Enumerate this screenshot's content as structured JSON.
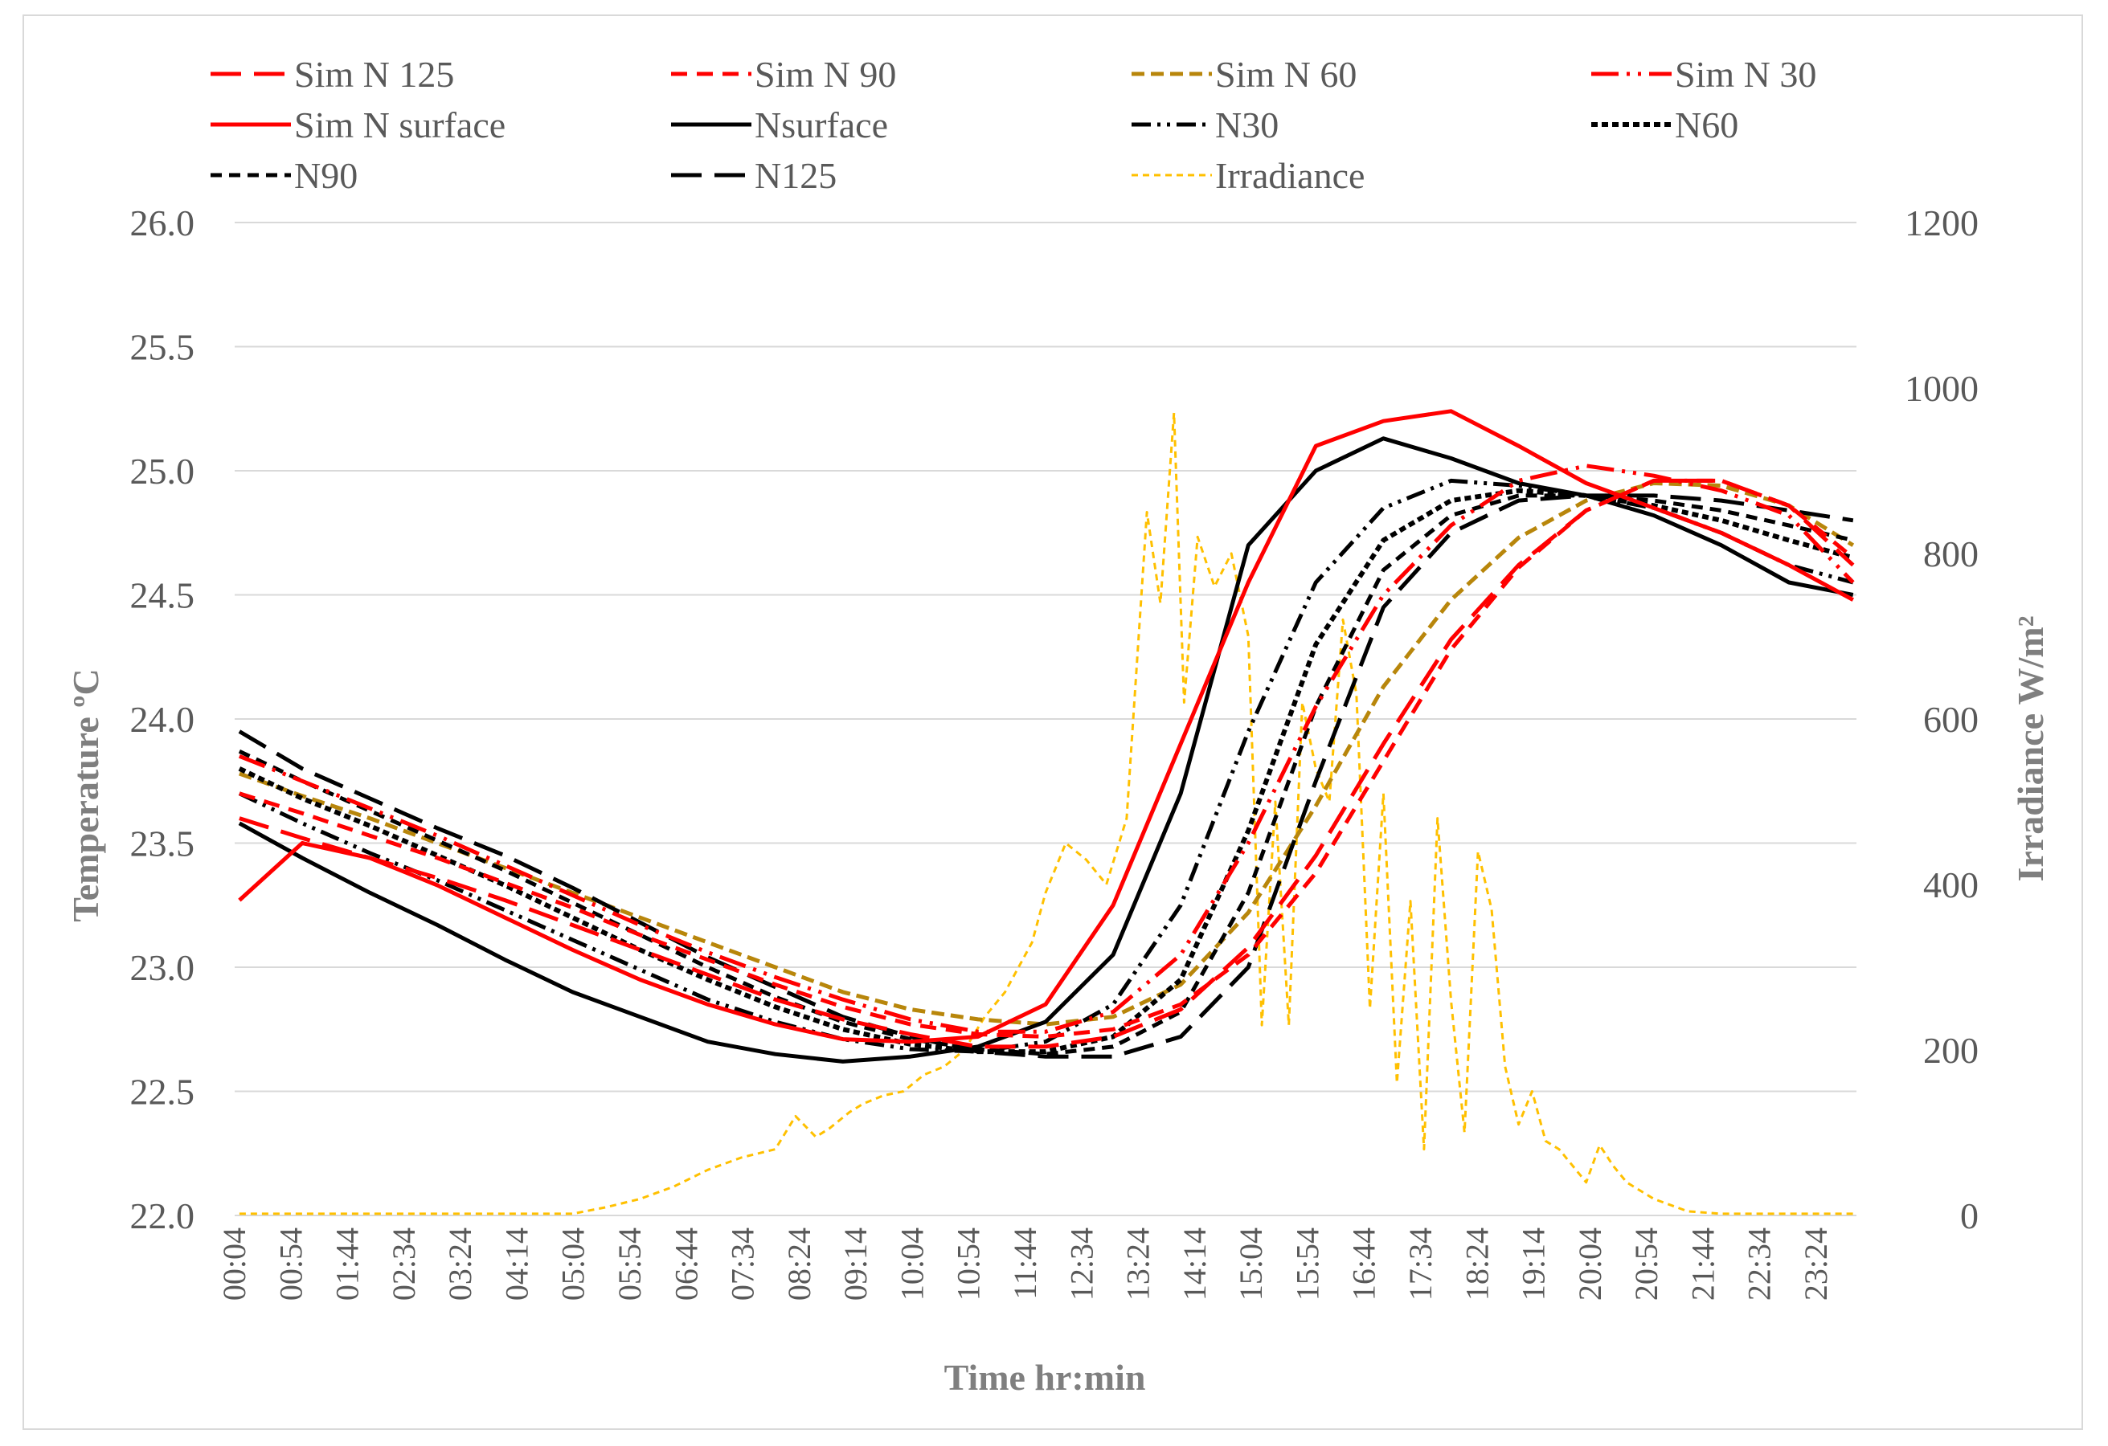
{
  "chart_data": {
    "type": "line",
    "title": "",
    "xlabel": "Time  hr:min",
    "ylabel": "Temperature  ºC",
    "y2label": "Irradiance  W/m²",
    "ylim": [
      22.0,
      26.0
    ],
    "y2lim": [
      0,
      1200
    ],
    "yticks": [
      "22.0",
      "22.5",
      "23.0",
      "23.5",
      "24.0",
      "24.5",
      "25.0",
      "25.5",
      "26.0"
    ],
    "y2ticks": [
      "0",
      "200",
      "400",
      "600",
      "800",
      "1000",
      "1200"
    ],
    "x_tick_labels": [
      "00:04",
      "00:54",
      "01:44",
      "02:34",
      "03:24",
      "04:14",
      "05:04",
      "05:54",
      "06:44",
      "07:34",
      "08:24",
      "09:14",
      "10:04",
      "10:54",
      "11:44",
      "12:34",
      "13:24",
      "14:14",
      "15:04",
      "15:54",
      "16:44",
      "17:34",
      "18:24",
      "19:14",
      "20:04",
      "20:54",
      "21:44",
      "22:34",
      "23:24"
    ],
    "x_hours": [
      0.07,
      1,
      2,
      3,
      4,
      5,
      6,
      7,
      8,
      9,
      10,
      11,
      12,
      13,
      14,
      15,
      16,
      17,
      18,
      19,
      20,
      21,
      22,
      23,
      23.95
    ],
    "series": [
      {
        "name": "Sim N 125",
        "axis": "left",
        "color": "#ff0000",
        "dash": "38,16",
        "width": 5,
        "values": [
          23.6,
          23.52,
          23.44,
          23.36,
          23.27,
          23.17,
          23.07,
          22.97,
          22.87,
          22.79,
          22.73,
          22.68,
          22.68,
          22.72,
          22.83,
          23.08,
          23.45,
          23.9,
          24.32,
          24.62,
          24.84,
          24.96,
          24.96,
          24.86,
          24.62
        ]
      },
      {
        "name": "Sim N 90",
        "axis": "left",
        "color": "#ff0000",
        "dash": "20,12",
        "width": 5,
        "values": [
          23.7,
          23.62,
          23.53,
          23.44,
          23.34,
          23.24,
          23.13,
          23.03,
          22.93,
          22.84,
          22.77,
          22.73,
          22.72,
          22.75,
          22.85,
          23.05,
          23.38,
          23.83,
          24.28,
          24.61,
          24.84,
          24.96,
          24.96,
          24.86,
          24.65
        ]
      },
      {
        "name": "Sim N 60",
        "axis": "left",
        "color": "#b8860b",
        "dash": "16,8",
        "width": 5,
        "values": [
          23.78,
          23.69,
          23.6,
          23.5,
          23.4,
          23.3,
          23.2,
          23.1,
          23.0,
          22.9,
          22.83,
          22.79,
          22.77,
          22.8,
          22.93,
          23.22,
          23.65,
          24.13,
          24.48,
          24.73,
          24.88,
          24.95,
          24.94,
          24.86,
          24.7
        ]
      },
      {
        "name": "Sim N 30",
        "axis": "left",
        "color": "#ff0000",
        "dash": "34,10,4,10,4,10",
        "width": 5,
        "values": [
          23.85,
          23.75,
          23.64,
          23.53,
          23.41,
          23.29,
          23.17,
          23.06,
          22.96,
          22.87,
          22.79,
          22.74,
          22.74,
          22.82,
          23.05,
          23.5,
          24.05,
          24.5,
          24.78,
          24.96,
          25.02,
          24.98,
          24.92,
          24.82,
          24.55
        ]
      },
      {
        "name": "Sim N surface",
        "axis": "left",
        "color": "#ff0000",
        "dash": "",
        "width": 5,
        "values": [
          23.27,
          23.5,
          23.44,
          23.33,
          23.2,
          23.07,
          22.95,
          22.85,
          22.77,
          22.71,
          22.7,
          22.72,
          22.85,
          23.25,
          23.9,
          24.55,
          25.1,
          25.2,
          25.24,
          25.1,
          24.95,
          24.85,
          24.75,
          24.62,
          24.48
        ]
      },
      {
        "name": "Nsurface",
        "axis": "left",
        "color": "#000000",
        "dash": "",
        "width": 5,
        "values": [
          23.58,
          23.44,
          23.3,
          23.17,
          23.03,
          22.9,
          22.8,
          22.7,
          22.65,
          22.62,
          22.64,
          22.68,
          22.78,
          23.05,
          23.7,
          24.7,
          25.0,
          25.13,
          25.05,
          24.95,
          24.9,
          24.82,
          24.7,
          24.55,
          24.5
        ]
      },
      {
        "name": "N30",
        "axis": "left",
        "color": "#000000",
        "dash": "24,8,4,8,4,8",
        "width": 5,
        "values": [
          23.7,
          23.58,
          23.46,
          23.35,
          23.23,
          23.11,
          22.99,
          22.87,
          22.78,
          22.71,
          22.67,
          22.66,
          22.7,
          22.85,
          23.25,
          23.95,
          24.55,
          24.85,
          24.96,
          24.94,
          24.9,
          24.85,
          24.75,
          24.62,
          24.55
        ]
      },
      {
        "name": "N60",
        "axis": "left",
        "color": "#000000",
        "dash": "8,5",
        "width": 6,
        "values": [
          23.8,
          23.68,
          23.57,
          23.45,
          23.33,
          23.2,
          23.07,
          22.95,
          22.84,
          22.75,
          22.69,
          22.66,
          22.66,
          22.72,
          22.95,
          23.55,
          24.3,
          24.72,
          24.88,
          24.92,
          24.9,
          24.86,
          24.8,
          24.72,
          24.65
        ]
      },
      {
        "name": "N90",
        "axis": "left",
        "color": "#000000",
        "dash": "14,9",
        "width": 5,
        "values": [
          23.87,
          23.75,
          23.63,
          23.51,
          23.39,
          23.26,
          23.13,
          23.0,
          22.88,
          22.78,
          22.71,
          22.67,
          22.65,
          22.68,
          22.82,
          23.3,
          24.05,
          24.6,
          24.82,
          24.9,
          24.9,
          24.88,
          24.84,
          24.78,
          24.72
        ]
      },
      {
        "name": "N125",
        "axis": "left",
        "color": "#000000",
        "dash": "38,16",
        "width": 5,
        "values": [
          23.95,
          23.8,
          23.68,
          23.56,
          23.45,
          23.32,
          23.18,
          23.04,
          22.92,
          22.8,
          22.72,
          22.66,
          22.64,
          22.64,
          22.72,
          23.0,
          23.75,
          24.45,
          24.75,
          24.88,
          24.9,
          24.9,
          24.88,
          24.84,
          24.8
        ]
      },
      {
        "name": "Irradiance",
        "axis": "right",
        "color": "#ffc000",
        "dash": "8,6",
        "width": 3,
        "x": [
          0.07,
          5.0,
          5.5,
          6.0,
          6.5,
          7.0,
          7.5,
          8.0,
          8.3,
          8.6,
          8.8,
          9.1,
          9.3,
          9.6,
          9.9,
          10.2,
          10.5,
          10.8,
          11.1,
          11.4,
          11.8,
          12.0,
          12.3,
          12.6,
          12.9,
          13.2,
          13.5,
          13.7,
          13.9,
          14.05,
          14.25,
          14.5,
          14.75,
          15.0,
          15.2,
          15.4,
          15.6,
          15.8,
          16.0,
          16.2,
          16.4,
          16.6,
          16.8,
          17.0,
          17.2,
          17.4,
          17.6,
          17.8,
          18.0,
          18.2,
          18.4,
          18.6,
          18.8,
          19.0,
          19.2,
          19.4,
          19.6,
          19.8,
          20.0,
          20.2,
          20.4,
          20.6,
          21.0,
          21.5,
          22.0,
          22.5,
          23.0,
          23.95
        ],
        "values": [
          2,
          2,
          10,
          20,
          35,
          55,
          70,
          80,
          120,
          95,
          105,
          125,
          135,
          145,
          150,
          170,
          180,
          200,
          240,
          270,
          330,
          390,
          450,
          430,
          400,
          480,
          850,
          740,
          970,
          620,
          820,
          760,
          800,
          700,
          230,
          500,
          230,
          620,
          540,
          500,
          720,
          630,
          250,
          510,
          160,
          380,
          80,
          480,
          260,
          100,
          440,
          370,
          180,
          110,
          150,
          90,
          80,
          60,
          40,
          85,
          60,
          40,
          20,
          5,
          2,
          2,
          2,
          2
        ]
      }
    ]
  }
}
